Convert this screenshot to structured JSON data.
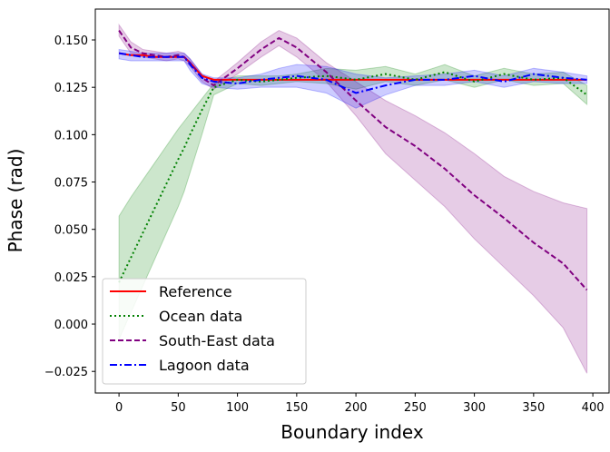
{
  "chart_data": {
    "type": "line",
    "xlabel": "Boundary index",
    "ylabel": "Phase (rad)",
    "x": [
      0,
      10,
      20,
      30,
      40,
      50,
      55,
      60,
      70,
      80,
      100,
      120,
      135,
      150,
      175,
      200,
      225,
      250,
      275,
      300,
      325,
      350,
      375,
      395
    ],
    "series": [
      {
        "name": "Reference",
        "color": "#ff0000",
        "dash": "solid",
        "values": [
          0.143,
          0.142,
          0.142,
          0.141,
          0.141,
          0.141,
          0.141,
          0.138,
          0.131,
          0.129,
          0.129,
          0.129,
          0.129,
          0.129,
          0.129,
          0.129,
          0.129,
          0.129,
          0.129,
          0.129,
          0.129,
          0.129,
          0.129,
          0.129
        ]
      },
      {
        "name": "Ocean data",
        "color": "#008000",
        "dash": "dotted",
        "values": [
          0.022,
          0.035,
          0.048,
          0.061,
          0.074,
          0.087,
          0.093,
          0.1,
          0.113,
          0.125,
          0.129,
          0.128,
          0.129,
          0.13,
          0.131,
          0.129,
          0.132,
          0.129,
          0.133,
          0.128,
          0.132,
          0.129,
          0.13,
          0.121
        ],
        "upper": [
          0.057,
          0.067,
          0.076,
          0.085,
          0.094,
          0.103,
          0.107,
          0.111,
          0.119,
          0.127,
          0.131,
          0.131,
          0.131,
          0.132,
          0.135,
          0.134,
          0.136,
          0.132,
          0.137,
          0.131,
          0.135,
          0.132,
          0.133,
          0.126
        ],
        "lower": [
          -0.008,
          0.006,
          0.02,
          0.034,
          0.048,
          0.062,
          0.07,
          0.08,
          0.1,
          0.121,
          0.127,
          0.126,
          0.127,
          0.128,
          0.127,
          0.124,
          0.128,
          0.126,
          0.129,
          0.125,
          0.129,
          0.126,
          0.127,
          0.116
        ]
      },
      {
        "name": "South-East data",
        "color": "#800080",
        "dash": "dashed",
        "values": [
          0.155,
          0.146,
          0.143,
          0.142,
          0.141,
          0.142,
          0.141,
          0.138,
          0.13,
          0.126,
          0.135,
          0.145,
          0.151,
          0.146,
          0.133,
          0.118,
          0.104,
          0.094,
          0.082,
          0.068,
          0.056,
          0.043,
          0.032,
          0.018
        ],
        "upper": [
          0.158,
          0.149,
          0.145,
          0.144,
          0.143,
          0.144,
          0.143,
          0.14,
          0.132,
          0.128,
          0.138,
          0.149,
          0.155,
          0.151,
          0.138,
          0.128,
          0.118,
          0.11,
          0.101,
          0.09,
          0.078,
          0.07,
          0.064,
          0.061
        ],
        "lower": [
          0.152,
          0.143,
          0.141,
          0.14,
          0.139,
          0.14,
          0.139,
          0.136,
          0.128,
          0.124,
          0.132,
          0.141,
          0.147,
          0.141,
          0.128,
          0.11,
          0.09,
          0.076,
          0.062,
          0.045,
          0.03,
          0.015,
          -0.002,
          -0.026
        ]
      },
      {
        "name": "Lagoon data",
        "color": "#0000ff",
        "dash": "dashdot",
        "values": [
          0.143,
          0.142,
          0.141,
          0.141,
          0.141,
          0.141,
          0.141,
          0.137,
          0.13,
          0.128,
          0.127,
          0.129,
          0.13,
          0.131,
          0.129,
          0.122,
          0.126,
          0.129,
          0.129,
          0.131,
          0.128,
          0.132,
          0.13,
          0.129
        ],
        "upper": [
          0.145,
          0.144,
          0.143,
          0.143,
          0.143,
          0.143,
          0.143,
          0.14,
          0.132,
          0.13,
          0.13,
          0.132,
          0.135,
          0.137,
          0.136,
          0.132,
          0.13,
          0.131,
          0.132,
          0.134,
          0.131,
          0.135,
          0.133,
          0.131
        ],
        "lower": [
          0.14,
          0.139,
          0.139,
          0.139,
          0.139,
          0.139,
          0.139,
          0.134,
          0.127,
          0.125,
          0.124,
          0.125,
          0.125,
          0.125,
          0.122,
          0.114,
          0.121,
          0.126,
          0.126,
          0.128,
          0.125,
          0.128,
          0.127,
          0.127
        ]
      }
    ],
    "xlim": [
      -20,
      414
    ],
    "ylim": [
      -0.0364,
      0.1663
    ],
    "xticks": [
      0,
      50,
      100,
      150,
      200,
      250,
      300,
      350,
      400
    ],
    "yticks": [
      {
        "value": -0.025,
        "label": "−0.025"
      },
      {
        "value": 0,
        "label": "0.000"
      },
      {
        "value": 0.025,
        "label": "0.025"
      },
      {
        "value": 0.05,
        "label": "0.050"
      },
      {
        "value": 0.075,
        "label": "0.075"
      },
      {
        "value": 0.1,
        "label": "0.100"
      },
      {
        "value": 0.125,
        "label": "0.125"
      },
      {
        "value": 0.15,
        "label": "0.150"
      }
    ],
    "legend": "lower left"
  }
}
